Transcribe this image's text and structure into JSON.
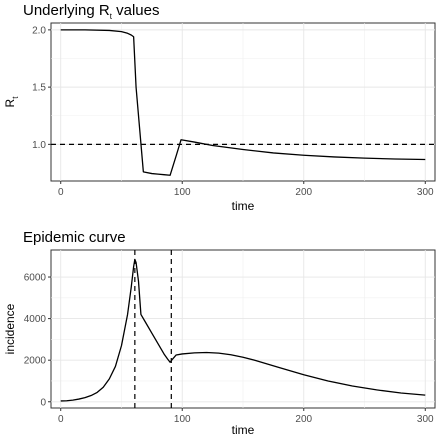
{
  "chart_data": [
    {
      "type": "line",
      "title": "Underlying R",
      "title_subscript": "t",
      "title_suffix": " values",
      "xlabel": "time",
      "ylabel": "R",
      "ylabel_subscript": "t",
      "xlim": [
        -8,
        308
      ],
      "ylim": [
        0.68,
        2.06
      ],
      "xticks": [
        0,
        100,
        200,
        300
      ],
      "yticks": [
        1.0,
        1.5,
        2.0
      ],
      "ytick_labels": [
        "1.0",
        "1.5",
        "2.0"
      ],
      "grid": true,
      "hline": {
        "y": 1.0,
        "style": "dashed"
      },
      "series": [
        {
          "x": [
            0,
            20,
            40,
            50,
            55,
            58,
            60,
            62,
            68,
            75,
            80,
            85,
            90,
            95,
            99,
            110,
            125,
            150,
            175,
            200,
            225,
            250,
            275,
            300
          ],
          "values": [
            2.0,
            2.0,
            1.995,
            1.985,
            1.97,
            1.955,
            1.94,
            1.5,
            0.76,
            0.745,
            0.74,
            0.735,
            0.73,
            0.9,
            1.04,
            1.02,
            0.99,
            0.955,
            0.925,
            0.905,
            0.89,
            0.88,
            0.872,
            0.868
          ]
        }
      ]
    },
    {
      "type": "line",
      "title": "Epidemic curve",
      "xlabel": "time",
      "ylabel": "incidence",
      "xlim": [
        -8,
        308
      ],
      "ylim": [
        -300,
        7300
      ],
      "xticks": [
        0,
        100,
        200,
        300
      ],
      "yticks": [
        0,
        2000,
        4000,
        6000
      ],
      "ytick_labels": [
        "0",
        "2000",
        "4000",
        "6000"
      ],
      "grid": true,
      "vlines": [
        {
          "x": 61,
          "style": "dashed"
        },
        {
          "x": 91,
          "style": "dashed"
        }
      ],
      "series": [
        {
          "x": [
            0,
            5,
            10,
            15,
            20,
            25,
            30,
            35,
            40,
            45,
            50,
            55,
            58,
            60,
            61,
            62,
            64,
            66,
            70,
            75,
            80,
            85,
            88,
            90,
            92,
            95,
            100,
            110,
            120,
            130,
            140,
            150,
            160,
            180,
            200,
            220,
            240,
            260,
            280,
            300
          ],
          "values": [
            40,
            50,
            80,
            130,
            200,
            300,
            450,
            700,
            1100,
            1700,
            2700,
            4200,
            5500,
            6500,
            6850,
            6700,
            5800,
            4200,
            3800,
            3300,
            2800,
            2300,
            2050,
            1900,
            2050,
            2250,
            2300,
            2350,
            2370,
            2340,
            2260,
            2140,
            1990,
            1640,
            1300,
            1000,
            760,
            570,
            420,
            320
          ]
        }
      ]
    }
  ]
}
